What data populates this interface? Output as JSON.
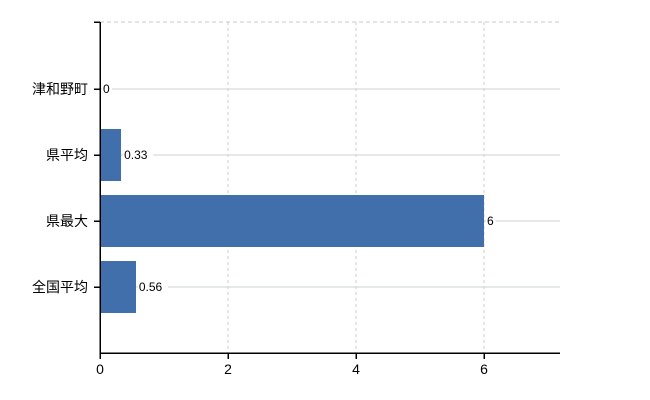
{
  "chart_data": {
    "type": "bar",
    "orientation": "horizontal",
    "title": "",
    "categories": [
      "津和野町",
      "県平均",
      "県最大",
      "全国平均"
    ],
    "values": [
      0,
      0.33,
      6,
      0.56
    ],
    "data_labels": [
      "0",
      "0.33",
      "6",
      "0.56"
    ],
    "x_axis": {
      "tick_labels": [
        "0",
        "2",
        "4",
        "6"
      ],
      "tick_values": [
        0,
        2,
        4,
        6
      ],
      "min": 0,
      "max": 7.19
    },
    "grid": true,
    "legend": false,
    "colors": {
      "bar": "#406fab",
      "axis": "#000000",
      "text": "#000000",
      "h_grid": "#ccd5cc",
      "v_grid": "#d0ccd2",
      "top_border": "#c9c9c9",
      "background": "#ffffff"
    }
  }
}
